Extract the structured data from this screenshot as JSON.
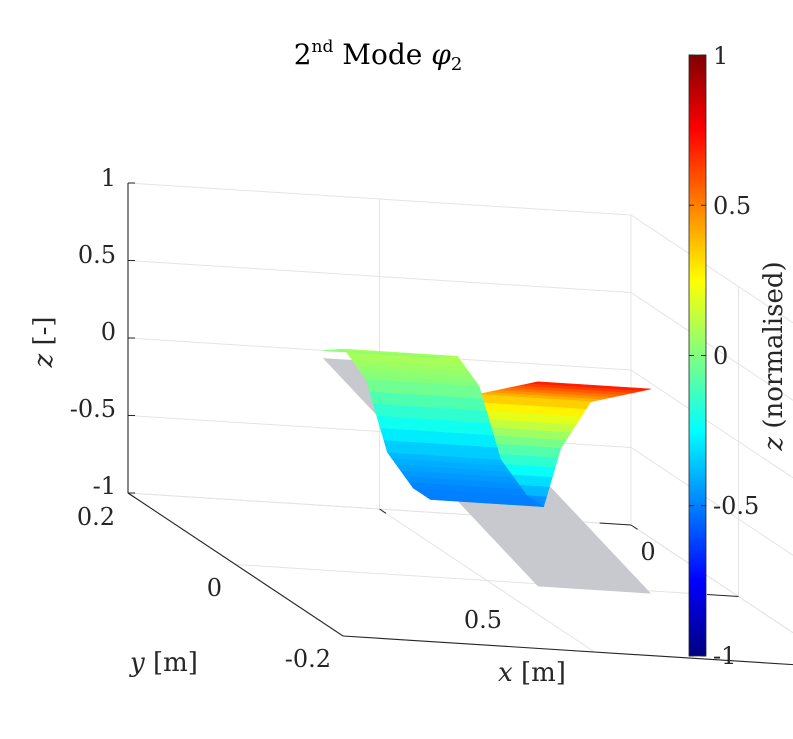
{
  "chart_data": {
    "type": "surface3d",
    "title": {
      "prefix": "2",
      "superscript": "nd",
      "main": " Mode ",
      "symbol": "φ",
      "subscript": "2"
    },
    "xlabel": {
      "var": "x",
      "unit": " [m]"
    },
    "ylabel": {
      "var": "y",
      "unit": " [m]"
    },
    "zlabel": {
      "var": "z",
      "unit": " [-]"
    },
    "colorbar_label": {
      "var": "z",
      "unit": " (normalised)"
    },
    "x_ticks": [
      "0",
      "0.5"
    ],
    "y_ticks": [
      "0.2",
      "0",
      "-0.2"
    ],
    "z_ticks": [
      "1",
      "0.5",
      "0",
      "-0.5",
      "-1"
    ],
    "colorbar_ticks": [
      "1",
      "0.5",
      "0",
      "-0.5",
      "-1"
    ],
    "xlim": [
      0,
      1
    ],
    "ylim": [
      -0.2,
      0.2
    ],
    "zlim": [
      -1,
      1
    ],
    "clim": [
      -1,
      1
    ],
    "colormap": "jet-reversed",
    "grid": true,
    "mode_shape": {
      "x": [
        1.0,
        0.72,
        0.58,
        0.5,
        0.42,
        0.3,
        0.2,
        0.1,
        0.0
      ],
      "z": [
        0.72,
        0.38,
        -0.05,
        -0.5,
        -0.5,
        -0.38,
        0.0,
        0.1,
        0.0
      ]
    },
    "undeformed": {
      "x": [
        1.0,
        0.0
      ],
      "z": [
        -0.6,
        -0.05
      ],
      "color": "#c8c9cf"
    }
  }
}
